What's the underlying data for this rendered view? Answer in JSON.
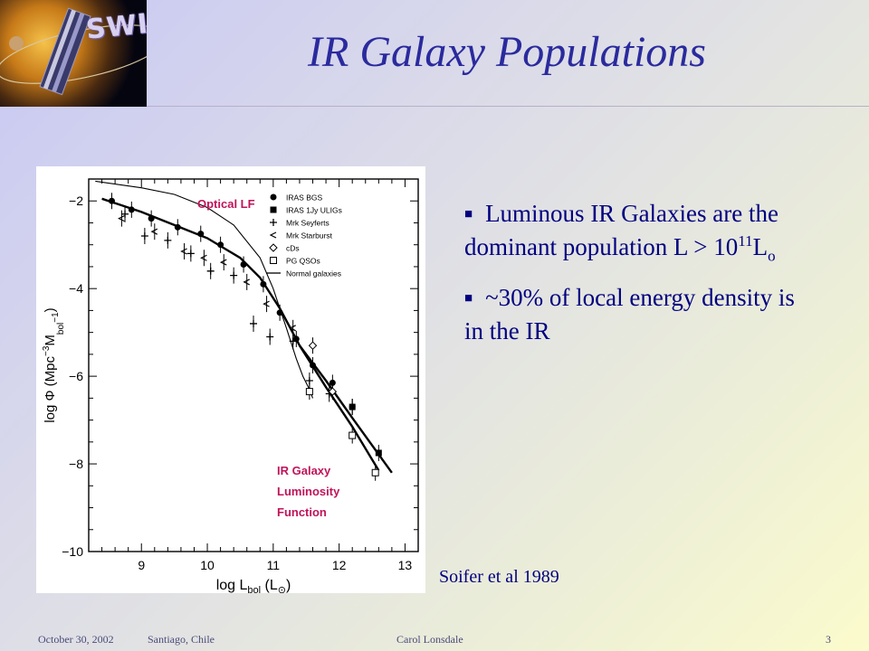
{
  "slide": {
    "logo_text": "SWIRE",
    "title": "IR Galaxy Populations",
    "bullets": [
      {
        "text_before": "Luminous IR Galaxies are the dominant population L > 10",
        "sup": "11",
        "text_mid": "L",
        "sub": "o"
      },
      {
        "text": "~30% of local energy density is in the IR"
      }
    ],
    "citation": "Soifer et al 1989",
    "footer": {
      "date": "October 30, 2002",
      "location": "Santiago, Chile",
      "author": "Carol Lonsdale",
      "page": "3"
    },
    "figure_labels": {
      "optical_lf": "Optical LF",
      "ir_lf": [
        "IR Galaxy",
        "Luminosity",
        "Function"
      ]
    }
  },
  "chart_data": {
    "type": "scatter",
    "xlabel": "log L",
    "xlabel_sub": "bol",
    "xlabel_unit": "(L",
    "xlabel_unit_sub": "⊙",
    "xlabel_close": ")",
    "ylabel": "log Φ  (Mpc",
    "ylabel_sup1": "−3",
    "ylabel_mid": "M",
    "ylabel_sub": "bol",
    "ylabel_sup2": "−1",
    "ylabel_close": ")",
    "xlim": [
      8.2,
      13.2
    ],
    "ylim": [
      -10,
      -1.5
    ],
    "xticks": [
      9,
      10,
      11,
      12,
      13
    ],
    "yticks": [
      -2,
      -4,
      -6,
      -8,
      -10
    ],
    "legend": {
      "placement": "top-right",
      "entries": [
        {
          "marker": "filled-circle",
          "label": "IRAS BGS"
        },
        {
          "marker": "filled-square",
          "label": "IRAS 1Jy ULIGs"
        },
        {
          "marker": "plus",
          "label": "Mrk Seyferts"
        },
        {
          "marker": "lt",
          "label": "Mrk Starburst"
        },
        {
          "marker": "diamond",
          "label": "cDs"
        },
        {
          "marker": "open-square",
          "label": "PG QSOs"
        },
        {
          "marker": "line",
          "label": "Normal galaxies"
        }
      ]
    },
    "series": [
      {
        "name": "IRAS BGS",
        "marker": "filled-circle",
        "x": [
          8.55,
          8.85,
          9.15,
          9.55,
          9.9,
          10.2,
          10.55,
          10.85,
          11.1,
          11.35,
          11.6,
          11.9,
          12.2
        ],
        "y": [
          -2.0,
          -2.2,
          -2.4,
          -2.6,
          -2.75,
          -3.0,
          -3.45,
          -3.9,
          -4.55,
          -5.15,
          -5.75,
          -6.15,
          -6.7
        ]
      },
      {
        "name": "IRAS 1Jy ULIGs",
        "marker": "filled-square",
        "x": [
          12.2,
          12.6
        ],
        "y": [
          -6.7,
          -7.75
        ]
      },
      {
        "name": "Mrk Seyferts",
        "marker": "plus",
        "x": [
          8.75,
          9.05,
          9.4,
          9.75,
          10.05,
          10.4,
          10.7,
          10.95,
          11.3,
          11.55,
          11.85
        ],
        "y": [
          -2.3,
          -2.8,
          -2.9,
          -3.2,
          -3.6,
          -3.7,
          -4.8,
          -5.1,
          -5.2,
          -6.1,
          -6.4
        ]
      },
      {
        "name": "Mrk Starburst",
        "marker": "lt",
        "x": [
          8.7,
          9.2,
          9.65,
          9.95,
          10.25,
          10.6,
          10.9,
          11.3
        ],
        "y": [
          -2.4,
          -2.7,
          -3.15,
          -3.3,
          -3.4,
          -3.85,
          -4.35,
          -4.9
        ]
      },
      {
        "name": "cDs",
        "marker": "diamond",
        "x": [
          11.6,
          11.9
        ],
        "y": [
          -5.3,
          -6.35
        ]
      },
      {
        "name": "PG QSOs",
        "marker": "open-square",
        "x": [
          11.55,
          12.2,
          12.55
        ],
        "y": [
          -6.35,
          -7.35,
          -8.2
        ]
      }
    ],
    "curves": [
      {
        "name": "Normal galaxies",
        "style": "thin",
        "x": [
          8.3,
          9.0,
          9.5,
          10.0,
          10.4,
          10.8,
          11.0,
          11.2,
          11.35,
          11.45,
          11.55,
          11.6
        ],
        "y": [
          -1.55,
          -1.7,
          -1.85,
          -2.15,
          -2.55,
          -3.3,
          -4.0,
          -4.9,
          -5.6,
          -6.0,
          -6.3,
          -6.5
        ]
      },
      {
        "name": "IR fit",
        "style": "thick",
        "x": [
          8.4,
          9.0,
          9.5,
          10.0,
          10.5,
          10.8,
          11.1,
          11.4,
          11.8,
          12.2,
          12.8
        ],
        "y": [
          -1.95,
          -2.25,
          -2.55,
          -2.85,
          -3.3,
          -3.75,
          -4.45,
          -5.3,
          -6.1,
          -6.95,
          -8.2
        ]
      },
      {
        "name": "IR fit 2",
        "style": "thick",
        "x": [
          11.4,
          11.8,
          12.2,
          12.6
        ],
        "y": [
          -5.3,
          -6.25,
          -7.15,
          -8.15
        ]
      }
    ]
  }
}
